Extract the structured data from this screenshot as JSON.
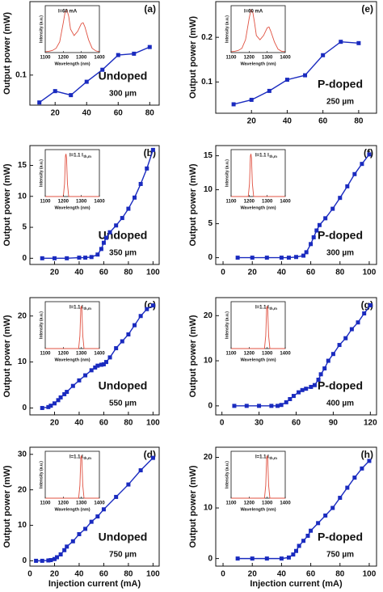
{
  "chart_data": [
    {
      "type": "line",
      "panel_label": "(a)",
      "y_label": "Output power (mW)",
      "doping": "Undoped",
      "length": "300 µm",
      "color": "#1a2bbf",
      "x": [
        10,
        20,
        30,
        40,
        50,
        60,
        70,
        80
      ],
      "values": [
        0.059,
        0.076,
        0.07,
        0.09,
        0.108,
        0.13,
        0.132,
        0.142
      ],
      "xlim": [
        4,
        86
      ],
      "xticks": [
        20,
        40,
        60,
        80
      ],
      "ylim": [
        0.055,
        0.21
      ],
      "yticks": [
        0.1
      ],
      "inset": {
        "type": "line",
        "label": "I=60 mA",
        "x_label": "Wavelength (nm)",
        "y_label": "Intensity (a.u.)",
        "color": "#e05040",
        "x": [
          1100,
          1120,
          1140,
          1160,
          1180,
          1200,
          1210,
          1220,
          1230,
          1240,
          1260,
          1280,
          1300,
          1310,
          1320,
          1340,
          1360,
          1380,
          1400
        ],
        "values": [
          0.02,
          0.03,
          0.05,
          0.1,
          0.25,
          0.7,
          0.95,
          1.0,
          0.85,
          0.55,
          0.4,
          0.5,
          0.68,
          0.7,
          0.6,
          0.3,
          0.1,
          0.04,
          0.02
        ],
        "xlim": [
          1100,
          1400
        ],
        "xticks": [
          1100,
          1200,
          1300,
          1400
        ],
        "ylim": [
          0,
          1.1
        ]
      }
    },
    {
      "type": "line",
      "panel_label": "(b)",
      "y_label": "Output power (mW)",
      "doping": "Undoped",
      "length": "350 µm",
      "color": "#1a2bbf",
      "x": [
        10,
        20,
        30,
        40,
        45,
        50,
        55,
        58,
        60,
        62,
        65,
        70,
        75,
        80,
        85,
        90,
        95,
        100
      ],
      "values": [
        0,
        0,
        0,
        0.1,
        0.1,
        0.2,
        0.6,
        1.5,
        2.5,
        3.3,
        4.2,
        5.3,
        6.5,
        8,
        9.8,
        12,
        14.5,
        17.5
      ],
      "xlim": [
        0,
        105
      ],
      "xticks": [
        20,
        40,
        60,
        80,
        100
      ],
      "ylim": [
        -1,
        18.2
      ],
      "yticks": [
        0,
        5,
        10,
        15
      ],
      "inset": {
        "type": "line",
        "label": "I=1.1 I",
        "label_sub": "th,m",
        "x_label": "Wavelength (nm)",
        "y_label": "Intensity (a.u.)",
        "color": "#e05040",
        "x": [
          1100,
          1200,
          1207,
          1212,
          1215,
          1218,
          1223,
          1230,
          1400
        ],
        "values": [
          0,
          0,
          0.3,
          0.95,
          1,
          0.9,
          0.3,
          0,
          0
        ],
        "xlim": [
          1100,
          1400
        ],
        "xticks": [
          1100,
          1200,
          1300,
          1400
        ],
        "ylim": [
          0,
          1.1
        ]
      }
    },
    {
      "type": "line",
      "panel_label": "(c)",
      "y_label": "Output power (mW)",
      "doping": "Undoped",
      "length": "550 µm",
      "color": "#1a2bbf",
      "x": [
        10,
        15,
        17,
        20,
        23,
        25,
        28,
        30,
        35,
        40,
        45,
        50,
        53,
        55,
        58,
        60,
        62,
        65,
        70,
        75,
        80,
        85,
        90,
        95,
        100
      ],
      "values": [
        0,
        0.2,
        0.5,
        1,
        1.7,
        2.3,
        3,
        3.5,
        4.8,
        6,
        7.1,
        8.2,
        8.8,
        9.2,
        9.4,
        9.5,
        10,
        11,
        13,
        14.5,
        16,
        18,
        20,
        21.5,
        22.3
      ],
      "xlim": [
        0,
        105
      ],
      "xticks": [
        20,
        40,
        60,
        80,
        100
      ],
      "ylim": [
        -1.5,
        24
      ],
      "yticks": [
        0,
        10,
        20
      ],
      "inset": {
        "type": "line",
        "label": "I=1.1 I",
        "label_sub": "th,m",
        "x_label": "Wavelength (nm)",
        "y_label": "Intensity (a.u.)",
        "color": "#e05040",
        "x": [
          1100,
          1285,
          1292,
          1297,
          1300,
          1303,
          1308,
          1315,
          1400
        ],
        "values": [
          0,
          0,
          0.3,
          0.95,
          1,
          0.9,
          0.3,
          0,
          0
        ],
        "xlim": [
          1100,
          1400
        ],
        "xticks": [
          1100,
          1200,
          1300,
          1400
        ],
        "ylim": [
          0,
          1.1
        ]
      }
    },
    {
      "type": "line",
      "panel_label": "(d)",
      "y_label": "Output power (mW)",
      "x_label": "Injection current (mA)",
      "doping": "Undoped",
      "length": "750 µm",
      "color": "#1a2bbf",
      "x": [
        5,
        10,
        15,
        17,
        20,
        22,
        25,
        28,
        30,
        35,
        40,
        45,
        50,
        55,
        60,
        70,
        80,
        90,
        100
      ],
      "values": [
        0,
        0,
        0.1,
        0.2,
        0.5,
        1,
        1.8,
        3,
        4,
        5.5,
        7.5,
        9,
        11,
        12.5,
        14.5,
        18,
        21.5,
        25.5,
        29
      ],
      "xlim": [
        0,
        105
      ],
      "xticks": [
        0,
        20,
        40,
        60,
        80,
        100
      ],
      "ylim": [
        -1.5,
        32
      ],
      "yticks": [
        0,
        10,
        20,
        30
      ],
      "inset": {
        "type": "line",
        "label": "I=1.1 I",
        "label_sub": "th,m",
        "x_label": "Wavelength (nm)",
        "y_label": "Intensity (a.u.)",
        "color": "#e05040",
        "x": [
          1100,
          1285,
          1292,
          1297,
          1300,
          1303,
          1308,
          1315,
          1400
        ],
        "values": [
          0,
          0,
          0.3,
          0.95,
          1,
          0.9,
          0.3,
          0,
          0
        ],
        "xlim": [
          1100,
          1400
        ],
        "xticks": [
          1100,
          1200,
          1300,
          1400
        ],
        "ylim": [
          0,
          1.1
        ]
      }
    },
    {
      "type": "line",
      "panel_label": "(e)",
      "y_label": "Output power (mW)",
      "doping": "P-doped",
      "length": "250 µm",
      "color": "#1a2bbf",
      "x": [
        10,
        20,
        30,
        40,
        50,
        60,
        70,
        80
      ],
      "values": [
        0.05,
        0.06,
        0.08,
        0.105,
        0.115,
        0.16,
        0.19,
        0.187
      ],
      "xlim": [
        0,
        90
      ],
      "xticks": [
        20,
        40,
        60,
        80
      ],
      "ylim": [
        0.03,
        0.28
      ],
      "yticks": [
        0.1,
        0.2
      ],
      "inset": {
        "type": "line",
        "label": "I=60 mA",
        "x_label": "Wavelength (nm)",
        "y_label": "Intensity (a.u.)",
        "color": "#e05040",
        "x": [
          1100,
          1120,
          1140,
          1160,
          1180,
          1200,
          1210,
          1220,
          1230,
          1240,
          1260,
          1280,
          1300,
          1310,
          1320,
          1340,
          1360,
          1380,
          1400
        ],
        "values": [
          0.02,
          0.03,
          0.05,
          0.1,
          0.3,
          0.8,
          1.0,
          0.95,
          0.7,
          0.4,
          0.3,
          0.4,
          0.58,
          0.6,
          0.5,
          0.25,
          0.08,
          0.03,
          0.02
        ],
        "xlim": [
          1100,
          1400
        ],
        "xticks": [
          1100,
          1200,
          1300,
          1400
        ],
        "ylim": [
          0,
          1.1
        ]
      }
    },
    {
      "type": "line",
      "panel_label": "(f)",
      "y_label": "Output power (mW)",
      "doping": "P-doped",
      "length": "300 µm",
      "color": "#1a2bbf",
      "x": [
        10,
        20,
        30,
        40,
        45,
        50,
        55,
        57,
        60,
        62,
        64,
        66,
        70,
        75,
        80,
        85,
        90,
        95,
        100
      ],
      "values": [
        0,
        0,
        0,
        0,
        0,
        0.1,
        0.3,
        0.8,
        2,
        3,
        4,
        4.8,
        5.8,
        7.2,
        8.8,
        10.5,
        12.3,
        13.8,
        15.2
      ],
      "xlim": [
        -5,
        105
      ],
      "xticks": [
        0,
        20,
        40,
        60,
        80,
        100
      ],
      "ylim": [
        -1,
        16.5
      ],
      "yticks": [
        0,
        5,
        10,
        15
      ],
      "inset": {
        "type": "line",
        "label": "I=1.1 I",
        "label_sub": "th,m",
        "x_label": "Wavelength (nm)",
        "y_label": "Intensity (a.u.)",
        "color": "#e05040",
        "x": [
          1100,
          1195,
          1202,
          1207,
          1210,
          1213,
          1218,
          1225,
          1400
        ],
        "values": [
          0,
          0,
          0.3,
          0.95,
          1,
          0.9,
          0.3,
          0,
          0
        ],
        "xlim": [
          1100,
          1400
        ],
        "xticks": [
          1100,
          1200,
          1300,
          1400
        ],
        "ylim": [
          0,
          1.1
        ]
      }
    },
    {
      "type": "line",
      "panel_label": "(g)",
      "y_label": "Output power (mW)",
      "doping": "P-doped",
      "length": "400 µm",
      "color": "#1a2bbf",
      "x": [
        10,
        20,
        30,
        40,
        45,
        48,
        52,
        55,
        58,
        62,
        65,
        68,
        72,
        75,
        78,
        80,
        83,
        86,
        90,
        95,
        100,
        105,
        110,
        115,
        120
      ],
      "values": [
        0,
        0,
        0,
        0,
        0,
        0.2,
        0.8,
        1.5,
        2.2,
        3,
        3.5,
        3.8,
        4.2,
        4.6,
        5.8,
        7,
        8.3,
        10,
        11.5,
        13.5,
        15,
        17,
        18.5,
        20.5,
        22.3
      ],
      "xlim": [
        -5,
        125
      ],
      "xticks": [
        0,
        30,
        60,
        90,
        120
      ],
      "ylim": [
        -2,
        24
      ],
      "yticks": [
        0,
        10,
        20
      ],
      "inset": {
        "type": "line",
        "label": "I=1.1 I",
        "label_sub": "th,m",
        "x_label": "Wavelength (nm)",
        "y_label": "Intensity (a.u.)",
        "color": "#e05040",
        "x": [
          1100,
          1285,
          1292,
          1297,
          1300,
          1303,
          1308,
          1315,
          1400
        ],
        "values": [
          0,
          0,
          0.3,
          0.95,
          1,
          0.9,
          0.3,
          0,
          0
        ],
        "xlim": [
          1100,
          1400
        ],
        "xticks": [
          1100,
          1200,
          1300,
          1400
        ],
        "ylim": [
          0,
          1.1
        ]
      }
    },
    {
      "type": "line",
      "panel_label": "(h)",
      "y_label": "Output power (mW)",
      "x_label": "Injection current (mA)",
      "doping": "P-doped",
      "length": "750 µm",
      "color": "#1a2bbf",
      "x": [
        10,
        20,
        30,
        40,
        45,
        48,
        50,
        52,
        55,
        58,
        60,
        65,
        70,
        75,
        80,
        85,
        90,
        95,
        100
      ],
      "values": [
        0,
        0,
        0,
        0,
        0.2,
        0.8,
        1.5,
        2.5,
        3.5,
        4.5,
        5.5,
        7,
        8.5,
        10,
        12,
        14,
        16,
        17.8,
        19.3
      ],
      "xlim": [
        -5,
        105
      ],
      "xticks": [
        0,
        20,
        40,
        60,
        80,
        100
      ],
      "ylim": [
        -1.5,
        22
      ],
      "yticks": [
        0,
        10,
        20
      ],
      "inset": {
        "type": "line",
        "label": "I=1.1 I",
        "label_sub": "th,m",
        "x_label": "Wavelength (nm)",
        "y_label": "Intensity (a.u.)",
        "color": "#e05040",
        "x": [
          1100,
          1285,
          1292,
          1297,
          1300,
          1303,
          1308,
          1315,
          1400
        ],
        "values": [
          0,
          0,
          0.3,
          0.95,
          1,
          0.9,
          0.3,
          0,
          0
        ],
        "xlim": [
          1100,
          1400
        ],
        "xticks": [
          1100,
          1200,
          1300,
          1400
        ],
        "ylim": [
          0,
          1.1
        ]
      }
    }
  ]
}
